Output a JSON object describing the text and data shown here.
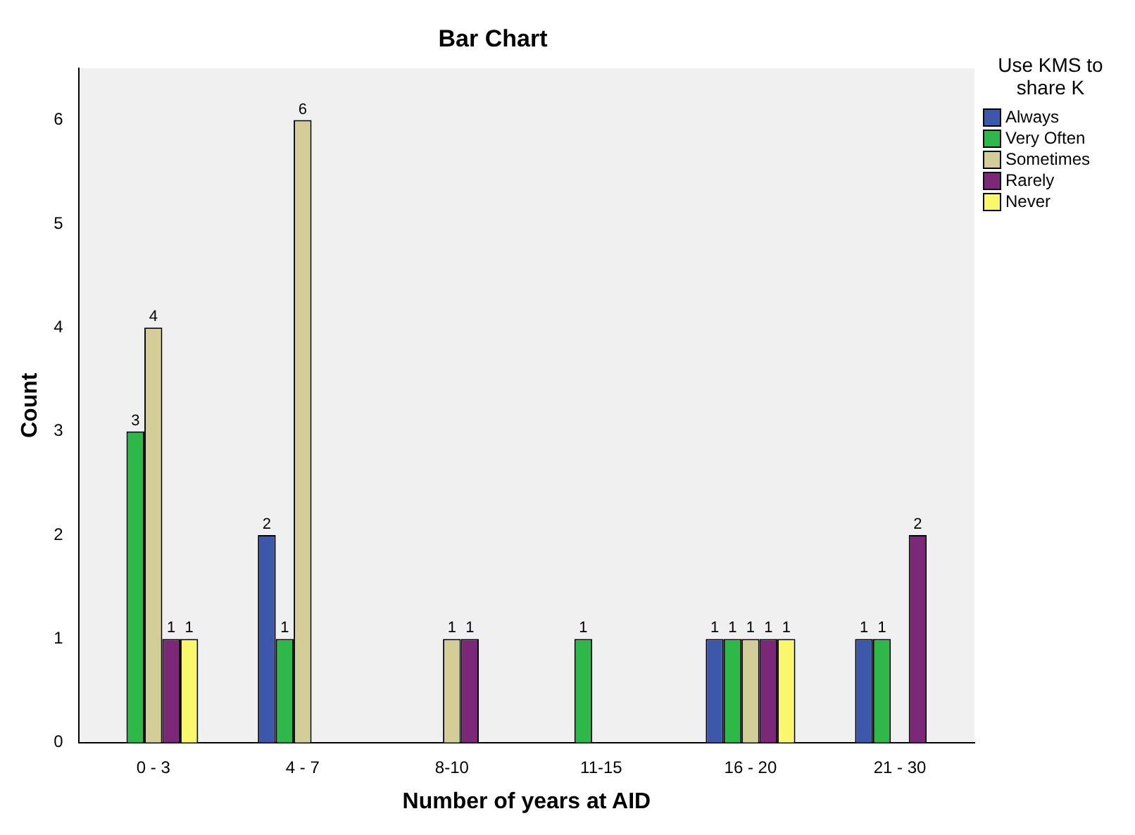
{
  "chart_data": {
    "type": "bar",
    "title": "Bar Chart",
    "xlabel": "Number of years at AID",
    "ylabel": "Count",
    "legend_title": "Use KMS to share K",
    "legend": "right",
    "grid": false,
    "data_labels": true,
    "categories": [
      "0 - 3",
      "4 - 7",
      "8-10",
      "11-15",
      "16 - 20",
      "21 - 30"
    ],
    "ylim": [
      0,
      6.5
    ],
    "yticks": [
      0,
      1,
      2,
      3,
      4,
      5,
      6
    ],
    "series": [
      {
        "name": "Always",
        "color": "#3d58aa",
        "values": [
          null,
          2,
          null,
          null,
          1,
          1
        ]
      },
      {
        "name": "Very Often",
        "color": "#2eb84a",
        "values": [
          3,
          1,
          null,
          1,
          1,
          1
        ]
      },
      {
        "name": "Sometimes",
        "color": "#d3ce97",
        "values": [
          4,
          6,
          1,
          null,
          1,
          null
        ]
      },
      {
        "name": "Rarely",
        "color": "#7c2878",
        "values": [
          1,
          null,
          1,
          null,
          1,
          2
        ]
      },
      {
        "name": "Never",
        "color": "#fbf76c",
        "values": [
          1,
          null,
          null,
          null,
          1,
          null
        ]
      }
    ]
  }
}
